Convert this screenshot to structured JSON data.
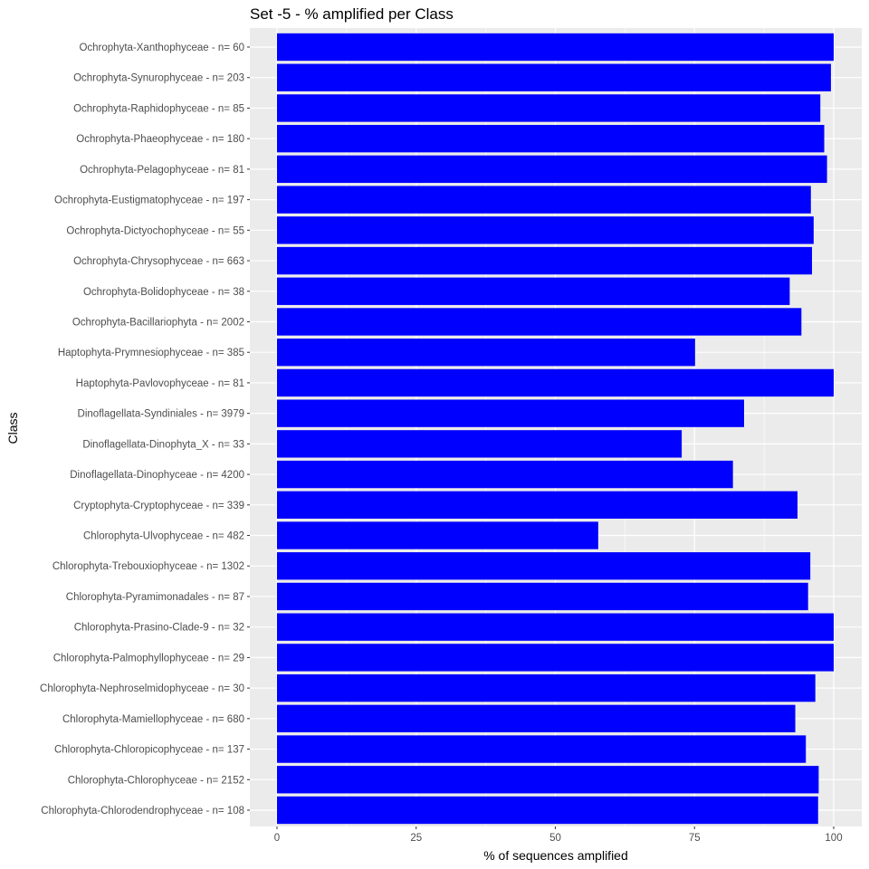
{
  "chart_data": {
    "type": "bar",
    "orientation": "horizontal",
    "title": "Set -5 - % amplified per Class",
    "xlabel": "% of sequences amplified",
    "ylabel": "Class",
    "xlim": [
      0,
      100
    ],
    "x_ticks": [
      0,
      25,
      50,
      75,
      100
    ],
    "grid": true,
    "legend": "none",
    "colors": {
      "bar": "#0000FF",
      "panel_background": "#EBEBEB",
      "grid": "#FFFFFF"
    },
    "categories": [
      "Ochrophyta-Xanthophyceae - n= 60",
      "Ochrophyta-Synurophyceae - n= 203",
      "Ochrophyta-Raphidophyceae - n= 85",
      "Ochrophyta-Phaeophyceae - n= 180",
      "Ochrophyta-Pelagophyceae - n= 81",
      "Ochrophyta-Eustigmatophyceae - n= 197",
      "Ochrophyta-Dictyochophyceae - n= 55",
      "Ochrophyta-Chrysophyceae - n= 663",
      "Ochrophyta-Bolidophyceae - n= 38",
      "Ochrophyta-Bacillariophyta - n= 2002",
      "Haptophyta-Prymnesiophyceae - n= 385",
      "Haptophyta-Pavlovophyceae - n= 81",
      "Dinoflagellata-Syndiniales - n= 3979",
      "Dinoflagellata-Dinophyta_X - n= 33",
      "Dinoflagellata-Dinophyceae - n= 4200",
      "Cryptophyta-Cryptophyceae - n= 339",
      "Chlorophyta-Ulvophyceae - n= 482",
      "Chlorophyta-Trebouxiophyceae - n= 1302",
      "Chlorophyta-Pyramimonadales - n= 87",
      "Chlorophyta-Prasino-Clade-9 - n= 32",
      "Chlorophyta-Palmophyllophyceae - n= 29",
      "Chlorophyta-Nephroselmidophyceae - n= 30",
      "Chlorophyta-Mamiellophyceae - n= 680",
      "Chlorophyta-Chloropicophyceae - n= 137",
      "Chlorophyta-Chlorophyceae - n= 2152",
      "Chlorophyta-Chlorodendrophyceae - n= 108"
    ],
    "values": [
      100,
      99.5,
      97.6,
      98.3,
      98.8,
      95.9,
      96.4,
      96.1,
      92.1,
      94.2,
      75.1,
      100,
      83.9,
      72.7,
      81.9,
      93.5,
      57.7,
      95.8,
      95.4,
      100,
      100,
      96.7,
      93.1,
      95.0,
      97.3,
      97.2
    ]
  }
}
